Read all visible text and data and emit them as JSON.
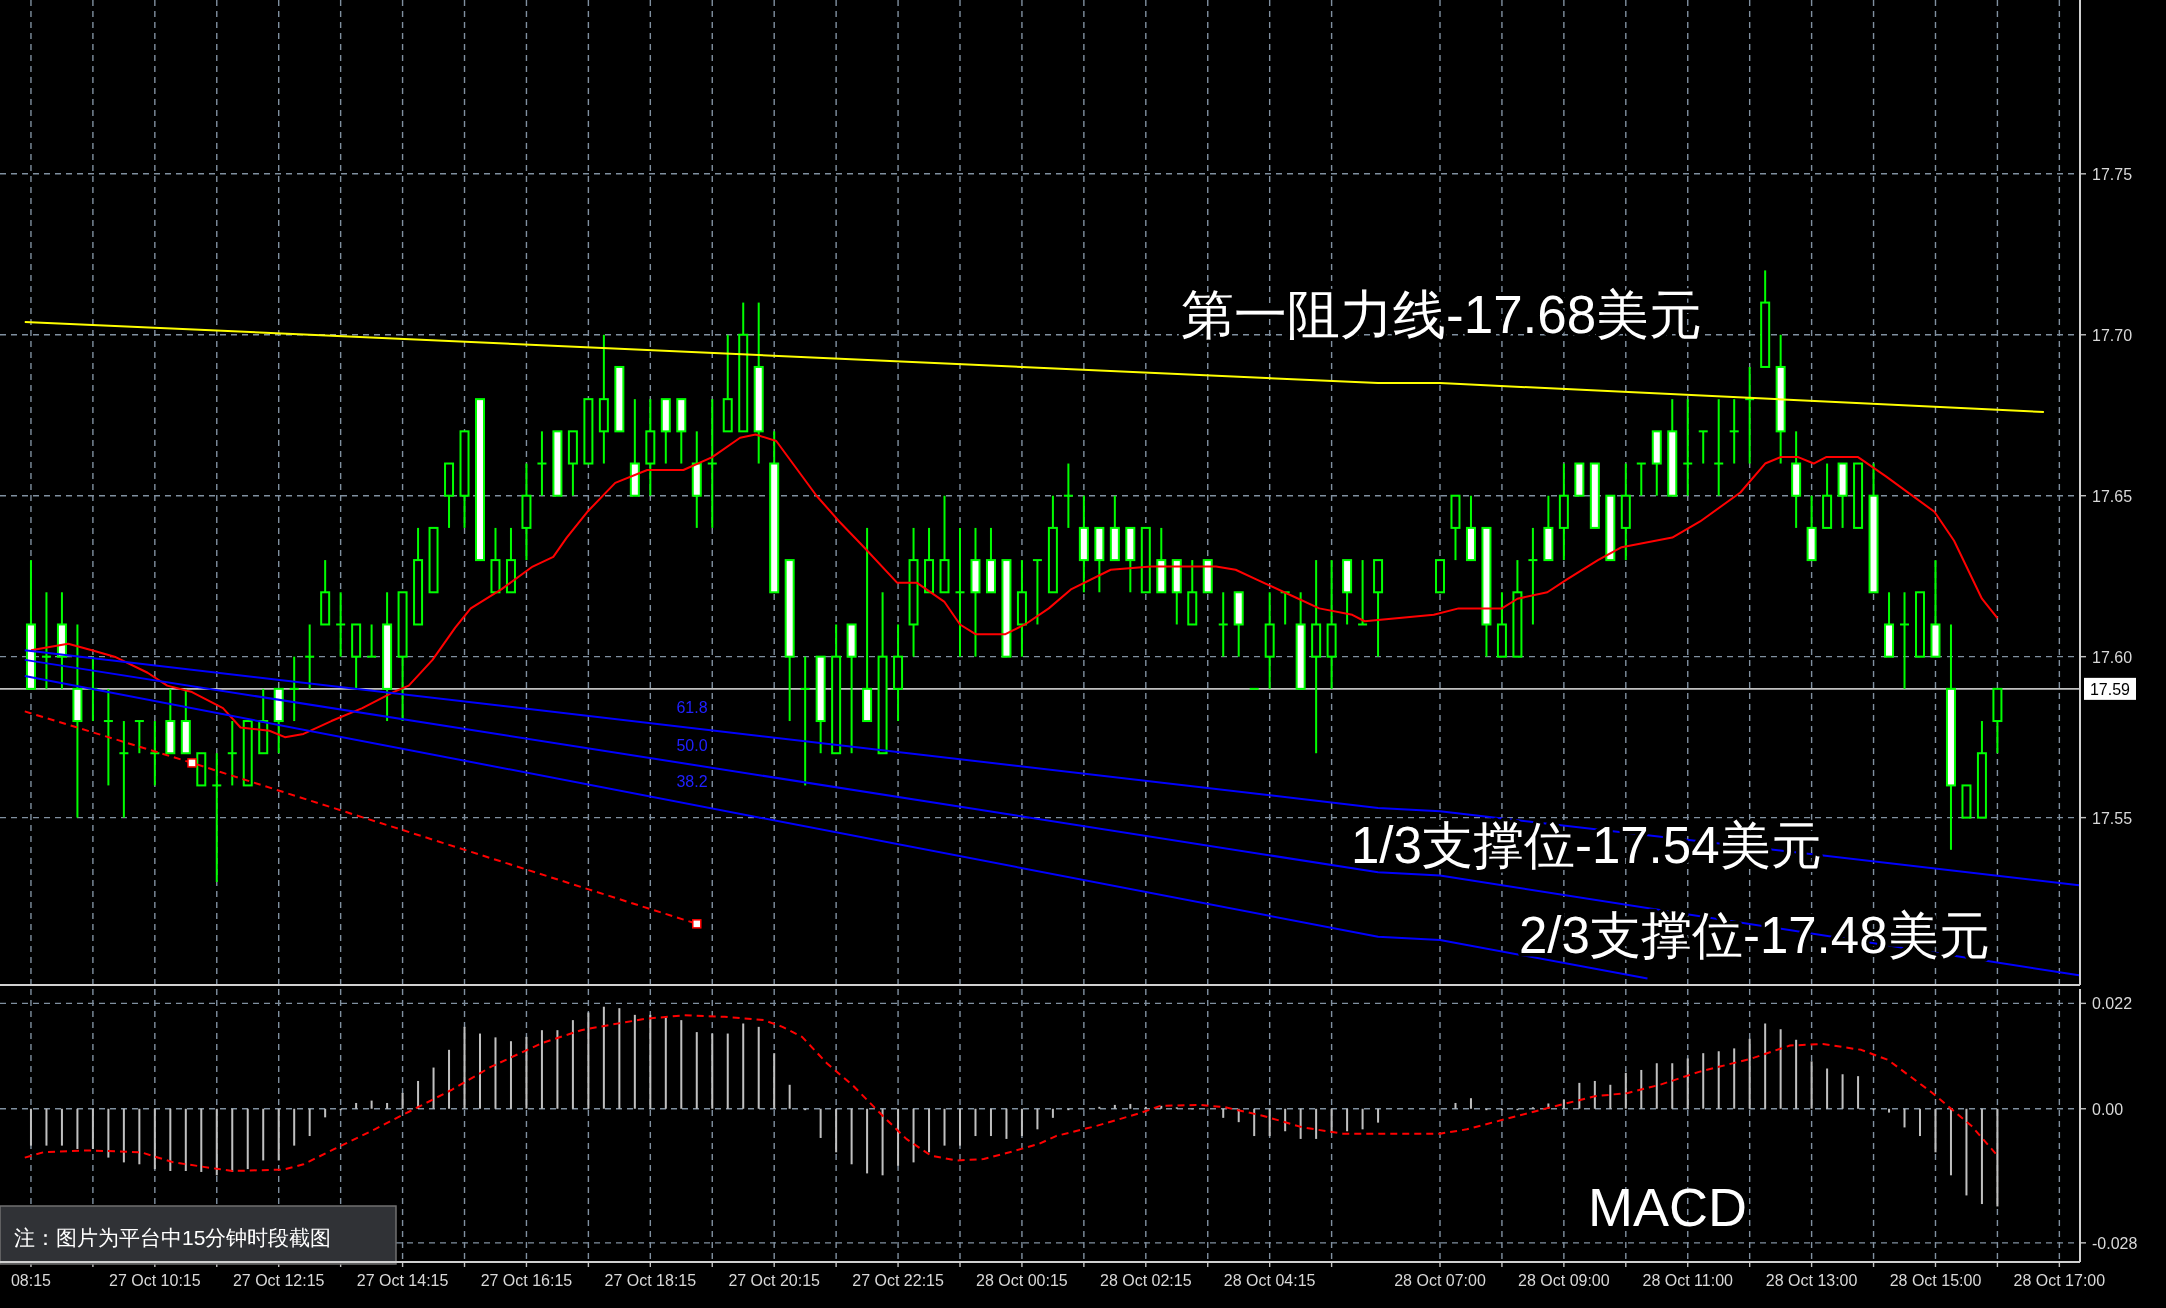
{
  "chart_data": [
    {
      "type": "candlestick",
      "color": "#00ff00",
      "grid": true,
      "tick_labels": "y",
      "xlim": [
        "--10-27T07:45",
        "--10-28T17:20"
      ],
      "ylim": [
        17.498,
        17.804
      ],
      "yticks": [
        {
          "value": 17.55,
          "label": "17.55"
        },
        {
          "value": 17.6,
          "label": "17.60"
        },
        {
          "value": 17.65,
          "label": "17.65"
        },
        {
          "value": 17.7,
          "label": "17.70"
        },
        {
          "value": 17.75,
          "label": "17.75"
        }
      ],
      "xticks": [
        "--10-27T08:15",
        "--10-27T09:15",
        "--10-27T10:15",
        "--10-27T11:15",
        "--10-27T12:15",
        "--10-27T13:15",
        "--10-27T14:15",
        "--10-27T15:15",
        "--10-27T16:15",
        "--10-27T17:15",
        "--10-27T18:15",
        "--10-27T19:15",
        "--10-27T20:15",
        "--10-27T21:15",
        "--10-27T22:15",
        "--10-27T23:15",
        "--10-28T00:15",
        "--10-28T01:15",
        "--10-28T02:15",
        "--10-28T03:15",
        "--10-28T04:15",
        "--10-28T05:15",
        "--10-28T07:00",
        "--10-28T08:00",
        "--10-28T09:00",
        "--10-28T10:00",
        "--10-28T11:00",
        "--10-28T12:00",
        "--10-28T13:00",
        "--10-28T14:00",
        "--10-28T15:00",
        "--10-28T16:00",
        "--10-28T17:00"
      ],
      "x": [
        "--10-27T08:15",
        "--10-27T08:30",
        "--10-27T08:45",
        "--10-27T09:00",
        "--10-27T09:15",
        "--10-27T09:30",
        "--10-27T09:45",
        "--10-27T10:00",
        "--10-27T10:15",
        "--10-27T10:30",
        "--10-27T10:45",
        "--10-27T11:00",
        "--10-27T11:15",
        "--10-27T11:30",
        "--10-27T11:45",
        "--10-27T12:00",
        "--10-27T12:15",
        "--10-27T12:30",
        "--10-27T12:45",
        "--10-27T13:00",
        "--10-27T13:15",
        "--10-27T13:30",
        "--10-27T13:45",
        "--10-27T14:00",
        "--10-27T14:15",
        "--10-27T14:30",
        "--10-27T14:45",
        "--10-27T15:00",
        "--10-27T15:15",
        "--10-27T15:30",
        "--10-27T15:45",
        "--10-27T16:00",
        "--10-27T16:15",
        "--10-27T16:30",
        "--10-27T16:45",
        "--10-27T17:00",
        "--10-27T17:15",
        "--10-27T17:30",
        "--10-27T17:45",
        "--10-27T18:00",
        "--10-27T18:15",
        "--10-27T18:30",
        "--10-27T18:45",
        "--10-27T19:00",
        "--10-27T19:15",
        "--10-27T19:30",
        "--10-27T19:45",
        "--10-27T20:00",
        "--10-27T20:15",
        "--10-27T20:30",
        "--10-27T20:45",
        "--10-27T21:00",
        "--10-27T21:15",
        "--10-27T21:30",
        "--10-27T21:45",
        "--10-27T22:00",
        "--10-27T22:15",
        "--10-27T22:30",
        "--10-27T22:45",
        "--10-27T23:00",
        "--10-27T23:15",
        "--10-27T23:30",
        "--10-27T23:45",
        "--10-28T00:00",
        "--10-28T00:15",
        "--10-28T00:30",
        "--10-28T00:45",
        "--10-28T01:00",
        "--10-28T01:15",
        "--10-28T01:30",
        "--10-28T01:45",
        "--10-28T02:00",
        "--10-28T02:15",
        "--10-28T02:30",
        "--10-28T02:45",
        "--10-28T03:00",
        "--10-28T03:15",
        "--10-28T03:30",
        "--10-28T03:45",
        "--10-28T04:00",
        "--10-28T04:15",
        "--10-28T04:30",
        "--10-28T04:45",
        "--10-28T05:00",
        "--10-28T05:15",
        "--10-28T05:30",
        "--10-28T05:45",
        "--10-28T06:00",
        "--10-28T07:00",
        "--10-28T07:15",
        "--10-28T07:30",
        "--10-28T07:45",
        "--10-28T08:00",
        "--10-28T08:15",
        "--10-28T08:30",
        "--10-28T08:45",
        "--10-28T09:00",
        "--10-28T09:15",
        "--10-28T09:30",
        "--10-28T09:45",
        "--10-28T10:00",
        "--10-28T10:15",
        "--10-28T10:30",
        "--10-28T10:45",
        "--10-28T11:00",
        "--10-28T11:15",
        "--10-28T11:30",
        "--10-28T11:45",
        "--10-28T12:00",
        "--10-28T12:15",
        "--10-28T12:30",
        "--10-28T12:45",
        "--10-28T13:00",
        "--10-28T13:15",
        "--10-28T13:30",
        "--10-28T13:45",
        "--10-28T14:00",
        "--10-28T14:15",
        "--10-28T14:30",
        "--10-28T14:45",
        "--10-28T15:00",
        "--10-28T15:15",
        "--10-28T15:30",
        "--10-28T15:45",
        "--10-28T16:00"
      ],
      "ohlc": [
        [
          17.61,
          17.63,
          17.59,
          17.59
        ],
        [
          17.6,
          17.62,
          17.59,
          17.6
        ],
        [
          17.61,
          17.62,
          17.59,
          17.6
        ],
        [
          17.59,
          17.61,
          17.55,
          17.58
        ],
        [
          17.59,
          17.6,
          17.58,
          17.59
        ],
        [
          17.58,
          17.59,
          17.56,
          17.58
        ],
        [
          17.57,
          17.58,
          17.55,
          17.57
        ],
        [
          17.58,
          17.58,
          17.57,
          17.58
        ],
        [
          17.57,
          17.58,
          17.56,
          17.57
        ],
        [
          17.58,
          17.59,
          17.57,
          17.57
        ],
        [
          17.58,
          17.59,
          17.57,
          17.57
        ],
        [
          17.56,
          17.57,
          17.56,
          17.57
        ],
        [
          17.56,
          17.57,
          17.53,
          17.56
        ],
        [
          17.57,
          17.58,
          17.56,
          17.57
        ],
        [
          17.56,
          17.58,
          17.56,
          17.58
        ],
        [
          17.57,
          17.59,
          17.57,
          17.58
        ],
        [
          17.59,
          17.59,
          17.57,
          17.58
        ],
        [
          17.59,
          17.6,
          17.58,
          17.59
        ],
        [
          17.6,
          17.61,
          17.59,
          17.6
        ],
        [
          17.61,
          17.63,
          17.61,
          17.62
        ],
        [
          17.61,
          17.62,
          17.6,
          17.61
        ],
        [
          17.6,
          17.61,
          17.59,
          17.61
        ],
        [
          17.6,
          17.61,
          17.6,
          17.6
        ],
        [
          17.61,
          17.62,
          17.58,
          17.59
        ],
        [
          17.6,
          17.62,
          17.58,
          17.62
        ],
        [
          17.61,
          17.64,
          17.61,
          17.63
        ],
        [
          17.62,
          17.64,
          17.62,
          17.64
        ],
        [
          17.65,
          17.66,
          17.64,
          17.66
        ],
        [
          17.65,
          17.67,
          17.64,
          17.67
        ],
        [
          17.68,
          17.68,
          17.63,
          17.63
        ],
        [
          17.62,
          17.64,
          17.62,
          17.63
        ],
        [
          17.62,
          17.64,
          17.62,
          17.63
        ],
        [
          17.64,
          17.66,
          17.63,
          17.65
        ],
        [
          17.66,
          17.67,
          17.65,
          17.66
        ],
        [
          17.67,
          17.67,
          17.65,
          17.65
        ],
        [
          17.66,
          17.67,
          17.65,
          17.67
        ],
        [
          17.66,
          17.68,
          17.66,
          17.68
        ],
        [
          17.67,
          17.7,
          17.66,
          17.68
        ],
        [
          17.69,
          17.69,
          17.67,
          17.67
        ],
        [
          17.66,
          17.68,
          17.65,
          17.65
        ],
        [
          17.66,
          17.68,
          17.65,
          17.67
        ],
        [
          17.68,
          17.68,
          17.66,
          17.67
        ],
        [
          17.68,
          17.68,
          17.66,
          17.67
        ],
        [
          17.66,
          17.67,
          17.64,
          17.65
        ],
        [
          17.66,
          17.68,
          17.64,
          17.66
        ],
        [
          17.67,
          17.7,
          17.67,
          17.68
        ],
        [
          17.67,
          17.71,
          17.67,
          17.7
        ],
        [
          17.69,
          17.71,
          17.66,
          17.67
        ],
        [
          17.66,
          17.67,
          17.62,
          17.62
        ],
        [
          17.63,
          17.63,
          17.58,
          17.6
        ],
        [
          17.59,
          17.6,
          17.56,
          17.59
        ],
        [
          17.6,
          17.6,
          17.57,
          17.58
        ],
        [
          17.57,
          17.61,
          17.57,
          17.6
        ],
        [
          17.61,
          17.61,
          17.57,
          17.6
        ],
        [
          17.59,
          17.64,
          17.58,
          17.58
        ],
        [
          17.57,
          17.62,
          17.57,
          17.6
        ],
        [
          17.59,
          17.61,
          17.58,
          17.6
        ],
        [
          17.61,
          17.64,
          17.6,
          17.63
        ],
        [
          17.62,
          17.64,
          17.62,
          17.63
        ],
        [
          17.62,
          17.65,
          17.62,
          17.63
        ],
        [
          17.62,
          17.64,
          17.6,
          17.62
        ],
        [
          17.63,
          17.64,
          17.6,
          17.62
        ],
        [
          17.63,
          17.64,
          17.62,
          17.62
        ],
        [
          17.63,
          17.63,
          17.6,
          17.6
        ],
        [
          17.61,
          17.63,
          17.6,
          17.62
        ],
        [
          17.63,
          17.63,
          17.61,
          17.63
        ],
        [
          17.62,
          17.65,
          17.62,
          17.64
        ],
        [
          17.65,
          17.66,
          17.64,
          17.65
        ],
        [
          17.64,
          17.65,
          17.62,
          17.63
        ],
        [
          17.64,
          17.64,
          17.62,
          17.63
        ],
        [
          17.64,
          17.65,
          17.63,
          17.63
        ],
        [
          17.64,
          17.64,
          17.62,
          17.63
        ],
        [
          17.62,
          17.64,
          17.62,
          17.64
        ],
        [
          17.63,
          17.64,
          17.62,
          17.62
        ],
        [
          17.63,
          17.63,
          17.61,
          17.62
        ],
        [
          17.61,
          17.63,
          17.61,
          17.62
        ],
        [
          17.63,
          17.63,
          17.62,
          17.62
        ],
        [
          17.61,
          17.62,
          17.6,
          17.61
        ],
        [
          17.62,
          17.62,
          17.6,
          17.61
        ],
        [
          17.59,
          17.59,
          17.59,
          17.59
        ],
        [
          17.6,
          17.62,
          17.59,
          17.61
        ],
        [
          17.62,
          17.62,
          17.61,
          17.62
        ],
        [
          17.61,
          17.62,
          17.59,
          17.59
        ],
        [
          17.6,
          17.63,
          17.57,
          17.61
        ],
        [
          17.6,
          17.63,
          17.59,
          17.61
        ],
        [
          17.63,
          17.63,
          17.61,
          17.62
        ],
        [
          17.61,
          17.63,
          17.61,
          17.61
        ],
        [
          17.62,
          17.63,
          17.6,
          17.63
        ],
        [
          17.62,
          17.63,
          17.62,
          17.63
        ],
        [
          17.64,
          17.65,
          17.63,
          17.65
        ],
        [
          17.64,
          17.65,
          17.63,
          17.63
        ],
        [
          17.64,
          17.64,
          17.6,
          17.61
        ],
        [
          17.6,
          17.62,
          17.6,
          17.61
        ],
        [
          17.6,
          17.63,
          17.6,
          17.62
        ],
        [
          17.63,
          17.64,
          17.61,
          17.63
        ],
        [
          17.64,
          17.65,
          17.63,
          17.63
        ],
        [
          17.64,
          17.66,
          17.63,
          17.65
        ],
        [
          17.66,
          17.66,
          17.65,
          17.65
        ],
        [
          17.66,
          17.66,
          17.64,
          17.64
        ],
        [
          17.65,
          17.65,
          17.63,
          17.63
        ],
        [
          17.64,
          17.66,
          17.63,
          17.65
        ],
        [
          17.66,
          17.66,
          17.65,
          17.66
        ],
        [
          17.67,
          17.67,
          17.65,
          17.66
        ],
        [
          17.67,
          17.68,
          17.65,
          17.65
        ],
        [
          17.66,
          17.68,
          17.65,
          17.66
        ],
        [
          17.67,
          17.67,
          17.66,
          17.67
        ],
        [
          17.66,
          17.68,
          17.65,
          17.66
        ],
        [
          17.67,
          17.68,
          17.66,
          17.67
        ],
        [
          17.68,
          17.69,
          17.66,
          17.68
        ],
        [
          17.69,
          17.72,
          17.69,
          17.71
        ],
        [
          17.69,
          17.7,
          17.66,
          17.67
        ],
        [
          17.66,
          17.67,
          17.64,
          17.65
        ],
        [
          17.64,
          17.65,
          17.63,
          17.63
        ],
        [
          17.64,
          17.66,
          17.64,
          17.65
        ],
        [
          17.66,
          17.66,
          17.64,
          17.65
        ],
        [
          17.64,
          17.66,
          17.64,
          17.66
        ],
        [
          17.65,
          17.66,
          17.62,
          17.62
        ],
        [
          17.61,
          17.62,
          17.6,
          17.6
        ],
        [
          17.61,
          17.62,
          17.59,
          17.61
        ],
        [
          17.6,
          17.62,
          17.6,
          17.62
        ],
        [
          17.61,
          17.63,
          17.6,
          17.6
        ],
        [
          17.59,
          17.61,
          17.54,
          17.56
        ],
        [
          17.55,
          17.56,
          17.55,
          17.56
        ],
        [
          17.55,
          17.58,
          17.55,
          17.57
        ],
        [
          17.58,
          17.59,
          17.57,
          17.59
        ]
      ],
      "series": [
        {
          "type": "line",
          "color": "#ffff00",
          "x": [
            "--10-27T08:09",
            "--10-28T06:00",
            "--10-28T07:00",
            "--10-28T16:45"
          ],
          "values": [
            17.704,
            17.685,
            17.685,
            17.676
          ]
        },
        {
          "type": "line",
          "color": "#ff0000",
          "x": [
            "--10-27T08:15",
            "--10-27T08:51",
            "--10-27T09:14",
            "--10-27T09:36",
            "--10-27T10:08",
            "--10-27T10:27",
            "--10-27T10:51",
            "--10-27T11:21",
            "--10-27T11:38",
            "--10-27T12:06",
            "--10-27T12:21",
            "--10-27T12:39",
            "--10-27T13:06",
            "--10-27T13:36",
            "--10-27T14:06",
            "--10-27T14:21",
            "--10-27T14:44",
            "--10-27T15:06",
            "--10-27T15:21",
            "--10-27T15:51",
            "--10-27T16:21",
            "--10-27T16:41",
            "--10-27T16:54",
            "--10-27T17:14",
            "--10-27T17:41",
            "--10-27T18:12",
            "--10-27T18:47",
            "--10-27T19:15",
            "--10-27T19:42",
            "--10-27T19:57",
            "--10-27T20:17",
            "--10-27T20:56",
            "--10-27T21:18",
            "--10-27T21:42",
            "--10-27T22:14",
            "--10-27T22:33",
            "--10-27T23:00",
            "--10-27T23:15",
            "--10-27T23:30",
            "--10-27T23:59",
            "--10-28T00:18",
            "--10-28T00:41",
            "--10-28T01:03",
            "--10-28T01:41",
            "--10-28T02:20",
            "--10-28T03:23",
            "--10-28T03:42",
            "--10-28T04:02",
            "--10-28T04:36",
            "--10-28T05:03",
            "--10-28T05:35",
            "--10-28T05:47",
            "--10-28T06:54",
            "--10-28T07:18",
            "--10-28T08:00",
            "--10-28T08:15",
            "--10-28T08:44",
            "--10-28T09:03",
            "--10-28T09:33",
            "--10-28T09:56",
            "--10-28T10:45",
            "--10-28T11:12",
            "--10-28T11:51",
            "--10-28T12:15",
            "--10-28T12:30",
            "--10-28T12:47",
            "--10-28T13:02",
            "--10-28T13:14",
            "--10-28T13:45",
            "--10-28T14:12",
            "--10-28T14:59",
            "--10-28T15:18",
            "--10-28T15:45",
            "--10-28T16:00"
          ],
          "values": [
            17.602,
            17.604,
            17.602,
            17.6,
            17.595,
            17.591,
            17.589,
            17.584,
            17.578,
            17.577,
            17.575,
            17.576,
            17.58,
            17.584,
            17.589,
            17.591,
            17.599,
            17.609,
            17.615,
            17.621,
            17.628,
            17.631,
            17.637,
            17.645,
            17.654,
            17.658,
            17.658,
            17.662,
            17.668,
            17.669,
            17.667,
            17.65,
            17.642,
            17.634,
            17.623,
            17.623,
            17.617,
            17.61,
            17.607,
            17.607,
            17.61,
            17.615,
            17.621,
            17.627,
            17.628,
            17.628,
            17.627,
            17.624,
            17.619,
            17.615,
            17.613,
            17.611,
            17.613,
            17.615,
            17.615,
            17.618,
            17.62,
            17.624,
            17.63,
            17.634,
            17.637,
            17.642,
            17.651,
            17.66,
            17.662,
            17.662,
            17.66,
            17.662,
            17.662,
            17.656,
            17.645,
            17.636,
            17.618,
            17.612
          ]
        },
        {
          "type": "line",
          "color": "#0000ff",
          "x": [
            "--10-27T08:09",
            "--10-28T06:00",
            "--10-28T07:00",
            "--10-28T17:19"
          ],
          "values": [
            17.602,
            17.553,
            17.552,
            17.529
          ]
        },
        {
          "type": "line",
          "color": "#0000ff",
          "x": [
            "--10-27T08:09",
            "--10-28T06:00",
            "--10-28T07:00",
            "--10-28T17:19"
          ],
          "values": [
            17.599,
            17.533,
            17.532,
            17.501
          ]
        },
        {
          "type": "line",
          "color": "#0000ff",
          "x": [
            "--10-27T08:09",
            "--10-28T06:00",
            "--10-28T07:00",
            "--10-28T10:21"
          ],
          "values": [
            17.594,
            17.513,
            17.512,
            17.5
          ]
        },
        {
          "type": "line",
          "color": "#ff0000",
          "line_style": "dashed",
          "x": [
            "--10-27T08:09",
            "--10-27T10:51",
            "--10-27T19:00"
          ],
          "values": [
            17.583,
            17.567,
            17.517
          ]
        },
        {
          "type": "scatter",
          "color": "#ff0000",
          "marker": "square",
          "x": [
            "--10-27T10:51",
            "--10-27T19:00"
          ],
          "values": [
            17.567,
            17.517
          ]
        }
      ],
      "ref_lines": [
        {
          "axis": "y",
          "value": 17.59,
          "label": "17.59",
          "color": "#c0c0c0"
        }
      ],
      "annotations": [
        "第一阻力线-17.68美元",
        "1/3支撑位-17.54美元",
        "2/3支撑位-17.48美元",
        "61.8",
        "50.0",
        "38.2"
      ]
    },
    {
      "type": "bar",
      "grid": true,
      "xlim": [
        "--10-27T07:45",
        "--10-28T17:20"
      ],
      "ylim": [
        -0.032,
        0.025
      ],
      "yticks": [
        {
          "value": 0.022,
          "label": "0.022"
        },
        {
          "value": 0,
          "label": "0.00"
        },
        {
          "value": -0.028,
          "label": "-0.028"
        }
      ],
      "xticks": [
        {
          "value": "--10-27T08:15",
          "label": "08:15"
        },
        {
          "value": "--10-27T09:15",
          "label": null
        },
        {
          "value": "--10-27T10:15",
          "label": "27 Oct 10:15"
        },
        {
          "value": "--10-27T11:15",
          "label": null
        },
        {
          "value": "--10-27T12:15",
          "label": "27 Oct 12:15"
        },
        {
          "value": "--10-27T13:15",
          "label": null
        },
        {
          "value": "--10-27T14:15",
          "label": "27 Oct 14:15"
        },
        {
          "value": "--10-27T15:15",
          "label": null
        },
        {
          "value": "--10-27T16:15",
          "label": "27 Oct 16:15"
        },
        {
          "value": "--10-27T17:15",
          "label": null
        },
        {
          "value": "--10-27T18:15",
          "label": "27 Oct 18:15"
        },
        {
          "value": "--10-27T19:15",
          "label": null
        },
        {
          "value": "--10-27T20:15",
          "label": "27 Oct 20:15"
        },
        {
          "value": "--10-27T21:15",
          "label": null
        },
        {
          "value": "--10-27T22:15",
          "label": "27 Oct 22:15"
        },
        {
          "value": "--10-27T23:15",
          "label": null
        },
        {
          "value": "--10-28T00:15",
          "label": "28 Oct 00:15"
        },
        {
          "value": "--10-28T01:15",
          "label": null
        },
        {
          "value": "--10-28T02:15",
          "label": "28 Oct 02:15"
        },
        {
          "value": "--10-28T03:15",
          "label": null
        },
        {
          "value": "--10-28T04:15",
          "label": "28 Oct 04:15"
        },
        {
          "value": "--10-28T05:15",
          "label": null
        },
        {
          "value": "--10-28T07:00",
          "label": "28 Oct 07:00"
        },
        {
          "value": "--10-28T08:00",
          "label": null
        },
        {
          "value": "--10-28T09:00",
          "label": "28 Oct 09:00"
        },
        {
          "value": "--10-28T10:00",
          "label": null
        },
        {
          "value": "--10-28T11:00",
          "label": "28 Oct 11:00"
        },
        {
          "value": "--10-28T12:00",
          "label": null
        },
        {
          "value": "--10-28T13:00",
          "label": "28 Oct 13:00"
        },
        {
          "value": "--10-28T14:00",
          "label": null
        },
        {
          "value": "--10-28T15:00",
          "label": "28 Oct 15:00"
        },
        {
          "value": "--10-28T16:00",
          "label": null
        },
        {
          "value": "--10-28T17:00",
          "label": "28 Oct 17:00"
        }
      ],
      "x": [
        "--10-27T08:15",
        "--10-27T08:30",
        "--10-27T08:45",
        "--10-27T09:00",
        "--10-27T09:15",
        "--10-27T09:30",
        "--10-27T09:45",
        "--10-27T10:00",
        "--10-27T10:15",
        "--10-27T10:30",
        "--10-27T10:45",
        "--10-27T11:00",
        "--10-27T11:15",
        "--10-27T11:30",
        "--10-27T11:45",
        "--10-27T12:00",
        "--10-27T12:15",
        "--10-27T12:30",
        "--10-27T12:45",
        "--10-27T13:00",
        "--10-27T13:15",
        "--10-27T13:30",
        "--10-27T13:45",
        "--10-27T14:00",
        "--10-27T14:15",
        "--10-27T14:30",
        "--10-27T14:45",
        "--10-27T15:00",
        "--10-27T15:15",
        "--10-27T15:30",
        "--10-27T15:45",
        "--10-27T16:00",
        "--10-27T16:15",
        "--10-27T16:30",
        "--10-27T16:45",
        "--10-27T17:00",
        "--10-27T17:15",
        "--10-27T17:30",
        "--10-27T17:45",
        "--10-27T18:00",
        "--10-27T18:15",
        "--10-27T18:30",
        "--10-27T18:45",
        "--10-27T19:00",
        "--10-27T19:15",
        "--10-27T19:30",
        "--10-27T19:45",
        "--10-27T20:00",
        "--10-27T20:15",
        "--10-27T20:30",
        "--10-27T20:45",
        "--10-27T21:00",
        "--10-27T21:15",
        "--10-27T21:30",
        "--10-27T21:45",
        "--10-27T22:00",
        "--10-27T22:15",
        "--10-27T22:30",
        "--10-27T22:45",
        "--10-27T23:00",
        "--10-27T23:15",
        "--10-27T23:30",
        "--10-27T23:45",
        "--10-28T00:00",
        "--10-28T00:15",
        "--10-28T00:30",
        "--10-28T00:45",
        "--10-28T01:00",
        "--10-28T01:15",
        "--10-28T01:30",
        "--10-28T01:45",
        "--10-28T02:00",
        "--10-28T02:15",
        "--10-28T02:30",
        "--10-28T02:45",
        "--10-28T03:00",
        "--10-28T03:15",
        "--10-28T03:30",
        "--10-28T03:45",
        "--10-28T04:00",
        "--10-28T04:15",
        "--10-28T04:30",
        "--10-28T04:45",
        "--10-28T05:00",
        "--10-28T05:15",
        "--10-28T05:30",
        "--10-28T05:45",
        "--10-28T06:00",
        "--10-28T07:00",
        "--10-28T07:15",
        "--10-28T07:30",
        "--10-28T07:45",
        "--10-28T08:00",
        "--10-28T08:15",
        "--10-28T08:30",
        "--10-28T08:45",
        "--10-28T09:00",
        "--10-28T09:15",
        "--10-28T09:30",
        "--10-28T09:45",
        "--10-28T10:00",
        "--10-28T10:15",
        "--10-28T10:30",
        "--10-28T10:45",
        "--10-28T11:00",
        "--10-28T11:15",
        "--10-28T11:30",
        "--10-28T11:45",
        "--10-28T12:00",
        "--10-28T12:15",
        "--10-28T12:30",
        "--10-28T12:45",
        "--10-28T13:00",
        "--10-28T13:15",
        "--10-28T13:30",
        "--10-28T13:45",
        "--10-28T14:00",
        "--10-28T14:15",
        "--10-28T14:30",
        "--10-28T14:45",
        "--10-28T15:00",
        "--10-28T15:15",
        "--10-28T15:30",
        "--10-28T15:45",
        "--10-28T16:00"
      ],
      "series": [
        {
          "color": "#c0c0c0",
          "values": [
            -0.0077,
            -0.0077,
            -0.0077,
            -0.0084,
            -0.0084,
            -0.0102,
            -0.0112,
            -0.0116,
            -0.0126,
            -0.013,
            -0.013,
            -0.0132,
            -0.0139,
            -0.0132,
            -0.0126,
            -0.0108,
            -0.0108,
            -0.0077,
            -0.0057,
            -0.0018,
            -0.0003,
            0.0012,
            0.0017,
            0.0012,
            0.0033,
            0.0058,
            0.0086,
            0.0123,
            0.0171,
            0.0157,
            0.0149,
            0.0141,
            0.015,
            0.0164,
            0.0164,
            0.0185,
            0.0201,
            0.0213,
            0.021,
            0.0196,
            0.0196,
            0.0193,
            0.0185,
            0.016,
            0.0157,
            0.0157,
            0.0178,
            0.0171,
            0.0116,
            0.005,
            -0.0003,
            -0.0061,
            -0.0091,
            -0.0116,
            -0.0135,
            -0.0139,
            -0.0119,
            -0.0112,
            -0.0091,
            -0.0077,
            -0.0077,
            -0.0057,
            -0.0057,
            -0.0063,
            -0.0057,
            -0.0043,
            -0.0019,
            -0.0003,
            0,
            0.0004,
            0.0008,
            0.001,
            0.0004,
            0.0006,
            0.0003,
            0,
            0,
            -0.0019,
            -0.0028,
            -0.0057,
            -0.0057,
            -0.0047,
            -0.0063,
            -0.0063,
            -0.005,
            -0.0047,
            -0.0043,
            -0.0029,
            0,
            0.0012,
            0.0022,
            -0.0003,
            -0.0003,
            -0.0003,
            0.0003,
            0.0011,
            0.0019,
            0.0054,
            0.0058,
            0.005,
            0.0075,
            0.0081,
            0.0095,
            0.0095,
            0.0105,
            0.0116,
            0.012,
            0.0126,
            0.0146,
            0.0178,
            0.0166,
            0.0144,
            0.0099,
            0.0084,
            0.0072,
            0.0068,
            -0.0003,
            -0.0008,
            -0.0039,
            -0.0057,
            -0.0091,
            -0.0139,
            -0.0181,
            -0.0199,
            -0.0204
          ]
        },
        {
          "type": "line",
          "color": "#ff0000",
          "line_style": "dashed",
          "x": [
            "--10-27T08:09",
            "--10-27T08:27",
            "--10-27T09:11",
            "--10-27T10:02",
            "--10-27T10:33",
            "--10-27T11:17",
            "--10-27T11:30",
            "--10-27T12:20",
            "--10-27T12:39",
            "--10-27T13:09",
            "--10-27T13:48",
            "--10-27T14:26",
            "--10-27T15:03",
            "--10-27T15:41",
            "--10-27T16:30",
            "--10-27T17:08",
            "--10-27T17:33",
            "--10-27T18:11",
            "--10-27T18:48",
            "--10-27T19:27",
            "--10-27T20:05",
            "--10-27T20:23",
            "--10-27T20:42",
            "--10-27T21:06",
            "--10-27T21:32",
            "--10-27T21:57",
            "--10-27T22:23",
            "--10-27T22:47",
            "--10-27T23:12",
            "--10-27T23:38",
            "--10-28T00:03",
            "--10-28T00:32",
            "--10-28T00:48",
            "--10-28T01:27",
            "--10-28T02:11",
            "--10-28T02:29",
            "--10-28T03:08",
            "--10-28T03:32",
            "--10-28T04:09",
            "--10-28T04:47",
            "--10-28T05:26",
            "--10-28T07:00",
            "--10-28T07:26",
            "--10-28T08:15",
            "--10-28T08:47",
            "--10-28T09:30",
            "--10-28T10:02",
            "--10-28T10:33",
            "--10-28T11:11",
            "--10-28T12:02",
            "--10-28T12:39",
            "--10-28T13:11",
            "--10-28T13:48",
            "--10-28T14:14",
            "--10-28T14:57",
            "--10-28T15:35",
            "--10-28T16:00"
          ],
          "values": [
            -0.0102,
            -0.0091,
            -0.0087,
            -0.0091,
            -0.0112,
            -0.0126,
            -0.013,
            -0.0127,
            -0.0116,
            -0.0084,
            -0.0043,
            -0.0001,
            0.004,
            0.0088,
            0.0137,
            0.0164,
            0.0174,
            0.0188,
            0.0195,
            0.0192,
            0.0185,
            0.0171,
            0.015,
            0.0095,
            0.0047,
            -0.0008,
            -0.0063,
            -0.0098,
            -0.0108,
            -0.0105,
            -0.0091,
            -0.0073,
            -0.0057,
            -0.0036,
            -0.0008,
            0.0006,
            0.0008,
            0.0003,
            -0.0015,
            -0.0039,
            -0.0052,
            -0.0052,
            -0.0043,
            -0.0015,
            0.0003,
            0.0026,
            0.0033,
            0.005,
            0.0077,
            0.0105,
            0.0132,
            0.0135,
            0.0123,
            0.0102,
            0.0033,
            -0.0036,
            -0.0098
          ]
        }
      ],
      "annotations": [
        "MACD",
        "注：图片为平台中15分钟时段截图"
      ]
    }
  ]
}
